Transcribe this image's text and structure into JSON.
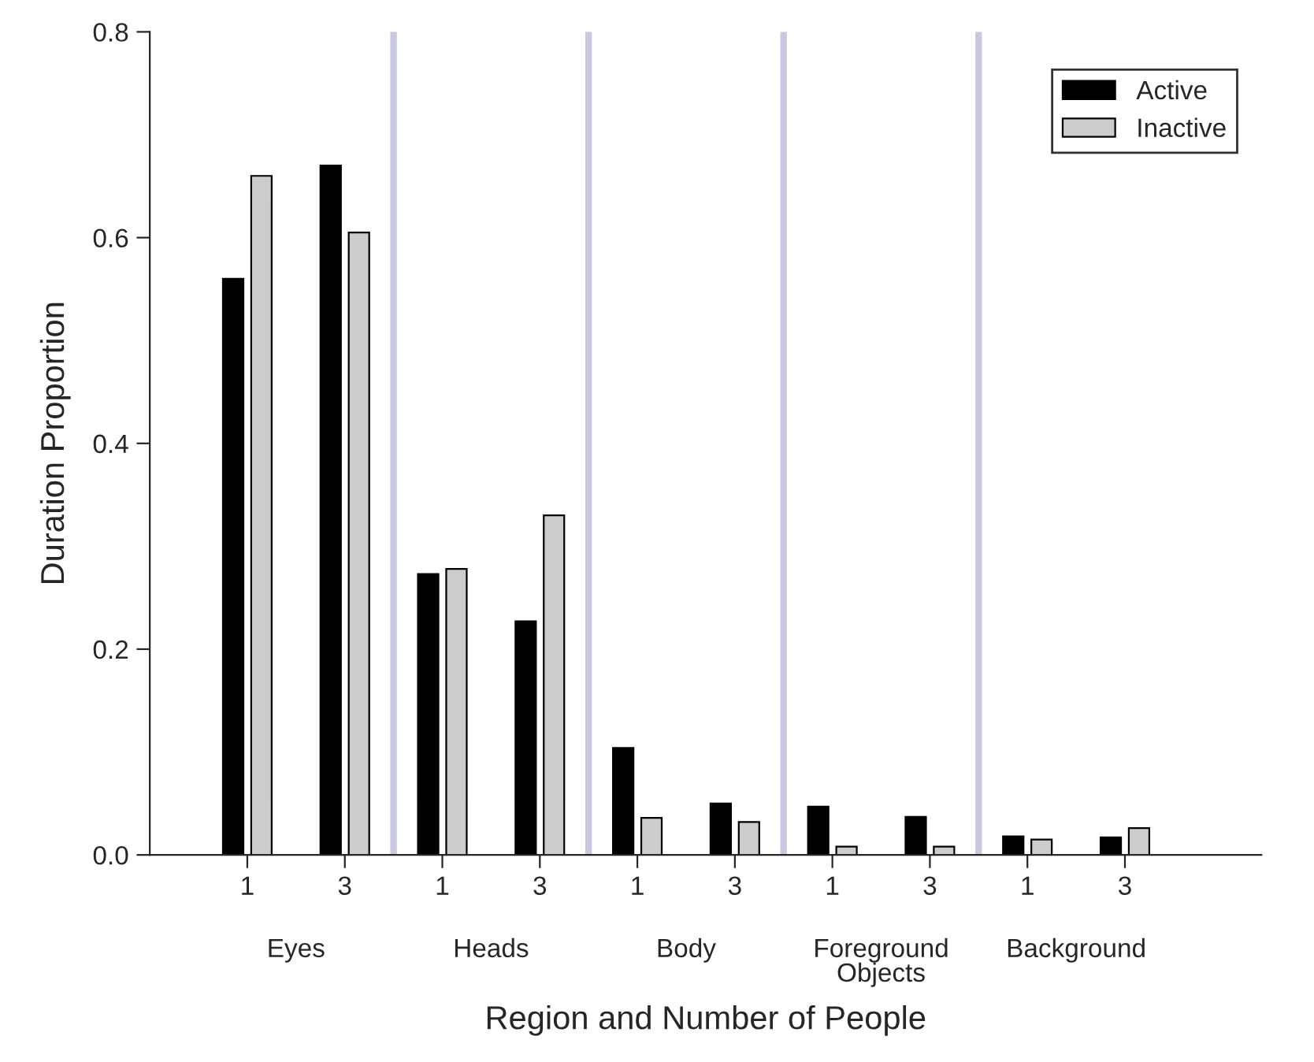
{
  "chart_data": {
    "type": "bar",
    "xlabel": "Region and Number of People",
    "ylabel": "Duration Proportion",
    "categories": [
      "1",
      "3",
      "1",
      "3",
      "1",
      "3",
      "1",
      "3",
      "1",
      "3"
    ],
    "series": [
      {
        "name": "Active",
        "color": "#000000",
        "values": [
          0.56,
          0.67,
          0.273,
          0.227,
          0.104,
          0.05,
          0.047,
          0.037,
          0.018,
          0.017
        ]
      },
      {
        "name": "Inactive",
        "color": "#cccccc",
        "values": [
          0.66,
          0.605,
          0.278,
          0.33,
          0.036,
          0.032,
          0.008,
          0.008,
          0.015,
          0.026
        ]
      }
    ],
    "annotations": [
      "Eyes",
      "Heads",
      "Body",
      "Foreground\nObjects",
      "Background"
    ],
    "ylim": [
      0,
      0.8
    ],
    "yticks": [
      {
        "value": 0,
        "label": "0.0"
      },
      0.2,
      0.4,
      0.6,
      0.8
    ],
    "grid": false,
    "legend": "top right"
  }
}
